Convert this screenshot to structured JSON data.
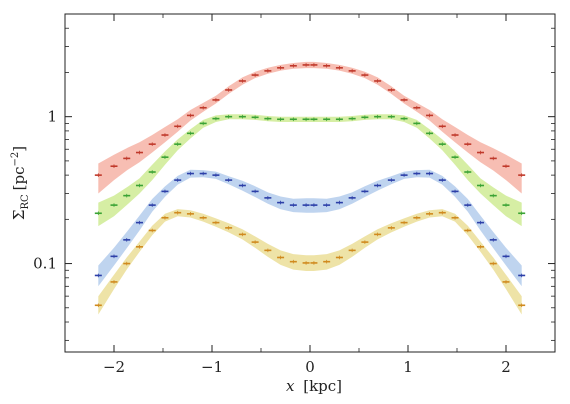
{
  "chart_data": {
    "type": "line",
    "xlabel_var": "x",
    "xlabel_unit": "[kpc]",
    "ylabel_sym": "Σ",
    "ylabel_sub": "RC",
    "ylabel_unit": "[pc",
    "ylabel_exp": "−2",
    "ylabel_close": "]",
    "xlim": [
      -2.5,
      2.5
    ],
    "ylim": [
      0.025,
      5.0
    ],
    "yscale": "log",
    "grid": false,
    "xticks": [
      -2,
      -1,
      0,
      1,
      2
    ],
    "xtick_labels": [
      "−2",
      "−1",
      "0",
      "1",
      "2"
    ],
    "yticks": [
      0.1,
      1
    ],
    "ytick_labels": [
      "0.1",
      "1"
    ],
    "x": [
      -2.16,
      -2.0,
      -1.87,
      -1.74,
      -1.61,
      -1.48,
      -1.35,
      -1.22,
      -1.09,
      -0.96,
      -0.83,
      -0.69,
      -0.56,
      -0.43,
      -0.3,
      -0.17,
      -0.04,
      0.04,
      0.17,
      0.3,
      0.43,
      0.56,
      0.69,
      0.83,
      0.96,
      1.09,
      1.22,
      1.35,
      1.48,
      1.61,
      1.74,
      1.87,
      2.0,
      2.16
    ],
    "series": [
      {
        "color": "#c0392b",
        "band_color": "#f4a89a",
        "values": [
          0.4,
          0.46,
          0.52,
          0.57,
          0.65,
          0.75,
          0.86,
          1.02,
          1.15,
          1.3,
          1.52,
          1.75,
          1.92,
          2.05,
          2.15,
          2.22,
          2.25,
          2.25,
          2.22,
          2.15,
          2.05,
          1.92,
          1.75,
          1.52,
          1.3,
          1.15,
          1.02,
          0.86,
          0.75,
          0.65,
          0.57,
          0.52,
          0.46,
          0.4
        ],
        "band_lower": [
          0.3,
          0.37,
          0.43,
          0.49,
          0.57,
          0.67,
          0.79,
          0.94,
          1.08,
          1.23,
          1.43,
          1.65,
          1.83,
          1.96,
          2.06,
          2.12,
          2.14,
          2.14,
          2.12,
          2.06,
          1.96,
          1.83,
          1.65,
          1.43,
          1.23,
          1.08,
          0.94,
          0.79,
          0.67,
          0.57,
          0.49,
          0.43,
          0.37,
          0.3
        ],
        "band_upper": [
          0.48,
          0.55,
          0.61,
          0.67,
          0.75,
          0.85,
          0.96,
          1.11,
          1.24,
          1.39,
          1.61,
          1.85,
          2.02,
          2.15,
          2.25,
          2.32,
          2.36,
          2.36,
          2.32,
          2.25,
          2.15,
          2.02,
          1.85,
          1.61,
          1.39,
          1.24,
          1.11,
          0.96,
          0.85,
          0.75,
          0.67,
          0.61,
          0.55,
          0.48
        ]
      },
      {
        "color": "#3aa335",
        "band_color": "#c8e886",
        "values": [
          0.22,
          0.25,
          0.29,
          0.34,
          0.42,
          0.53,
          0.65,
          0.77,
          0.9,
          0.97,
          1.0,
          1.0,
          0.99,
          0.97,
          0.96,
          0.96,
          0.96,
          0.96,
          0.96,
          0.96,
          0.97,
          0.99,
          1.0,
          1.0,
          0.97,
          0.9,
          0.77,
          0.65,
          0.53,
          0.42,
          0.34,
          0.29,
          0.25,
          0.22
        ],
        "band_lower": [
          0.18,
          0.21,
          0.25,
          0.3,
          0.37,
          0.47,
          0.59,
          0.71,
          0.84,
          0.92,
          0.96,
          0.96,
          0.95,
          0.93,
          0.92,
          0.92,
          0.92,
          0.92,
          0.92,
          0.92,
          0.93,
          0.95,
          0.96,
          0.96,
          0.92,
          0.84,
          0.71,
          0.59,
          0.47,
          0.37,
          0.3,
          0.25,
          0.21,
          0.18
        ],
        "band_upper": [
          0.26,
          0.29,
          0.33,
          0.38,
          0.47,
          0.58,
          0.7,
          0.82,
          0.95,
          1.02,
          1.04,
          1.04,
          1.03,
          1.01,
          1.0,
          1.0,
          1.0,
          1.0,
          1.0,
          1.0,
          1.01,
          1.03,
          1.04,
          1.04,
          1.02,
          0.95,
          0.82,
          0.7,
          0.58,
          0.47,
          0.38,
          0.33,
          0.29,
          0.26
        ]
      },
      {
        "color": "#2c3fa8",
        "band_color": "#a9c6ea",
        "values": [
          0.083,
          0.112,
          0.145,
          0.19,
          0.25,
          0.31,
          0.37,
          0.41,
          0.41,
          0.4,
          0.37,
          0.34,
          0.31,
          0.28,
          0.26,
          0.25,
          0.25,
          0.25,
          0.25,
          0.26,
          0.28,
          0.31,
          0.34,
          0.37,
          0.4,
          0.41,
          0.41,
          0.37,
          0.31,
          0.25,
          0.19,
          0.145,
          0.112,
          0.083
        ],
        "band_lower": [
          0.07,
          0.097,
          0.127,
          0.168,
          0.225,
          0.285,
          0.345,
          0.385,
          0.387,
          0.377,
          0.347,
          0.314,
          0.284,
          0.255,
          0.234,
          0.224,
          0.222,
          0.222,
          0.224,
          0.234,
          0.255,
          0.284,
          0.314,
          0.347,
          0.377,
          0.387,
          0.385,
          0.345,
          0.285,
          0.225,
          0.168,
          0.127,
          0.097,
          0.07
        ],
        "band_upper": [
          0.097,
          0.128,
          0.164,
          0.212,
          0.275,
          0.335,
          0.395,
          0.435,
          0.433,
          0.423,
          0.393,
          0.366,
          0.336,
          0.305,
          0.286,
          0.276,
          0.278,
          0.278,
          0.276,
          0.286,
          0.305,
          0.336,
          0.366,
          0.393,
          0.423,
          0.433,
          0.435,
          0.395,
          0.335,
          0.275,
          0.212,
          0.164,
          0.128,
          0.097
        ]
      },
      {
        "color": "#d08a1e",
        "band_color": "#e8d98a",
        "values": [
          0.052,
          0.075,
          0.1,
          0.13,
          0.168,
          0.205,
          0.222,
          0.218,
          0.205,
          0.19,
          0.175,
          0.158,
          0.14,
          0.123,
          0.11,
          0.103,
          0.101,
          0.101,
          0.103,
          0.11,
          0.123,
          0.14,
          0.158,
          0.175,
          0.19,
          0.205,
          0.218,
          0.222,
          0.205,
          0.168,
          0.13,
          0.1,
          0.075,
          0.052
        ],
        "band_lower": [
          0.045,
          0.067,
          0.091,
          0.12,
          0.156,
          0.193,
          0.21,
          0.206,
          0.193,
          0.178,
          0.163,
          0.146,
          0.128,
          0.111,
          0.098,
          0.091,
          0.089,
          0.089,
          0.091,
          0.098,
          0.111,
          0.128,
          0.146,
          0.163,
          0.178,
          0.193,
          0.206,
          0.21,
          0.193,
          0.156,
          0.12,
          0.091,
          0.067,
          0.045
        ],
        "band_upper": [
          0.06,
          0.084,
          0.11,
          0.141,
          0.181,
          0.218,
          0.235,
          0.231,
          0.218,
          0.203,
          0.188,
          0.171,
          0.153,
          0.136,
          0.123,
          0.116,
          0.114,
          0.114,
          0.116,
          0.123,
          0.136,
          0.153,
          0.171,
          0.188,
          0.203,
          0.218,
          0.231,
          0.235,
          0.218,
          0.181,
          0.141,
          0.11,
          0.084,
          0.06
        ]
      }
    ]
  }
}
